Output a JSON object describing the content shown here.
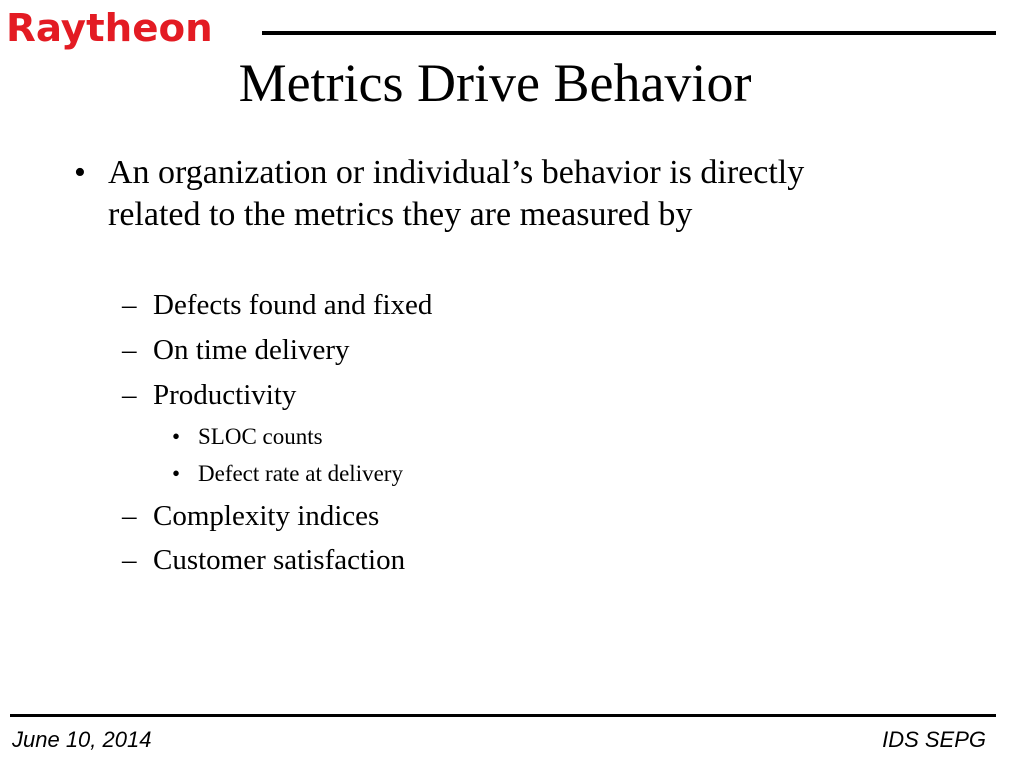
{
  "header": {
    "logo_text": "Raytheon",
    "brand_color": "#e31b23"
  },
  "slide": {
    "title": "Metrics Drive Behavior",
    "bullet_main": "An organization or individual’s behavior is directly related to the metrics they are measured by",
    "bullet_marker": "•",
    "dash_marker": "–",
    "small_marker": "•",
    "sub_items": [
      "Defects found and fixed",
      "On time delivery",
      "Productivity",
      "Complexity indices",
      "Customer satisfaction"
    ],
    "productivity_items": [
      "SLOC counts",
      "Defect rate at delivery"
    ]
  },
  "footer": {
    "date": "June 10, 2014",
    "org": "IDS SEPG"
  }
}
